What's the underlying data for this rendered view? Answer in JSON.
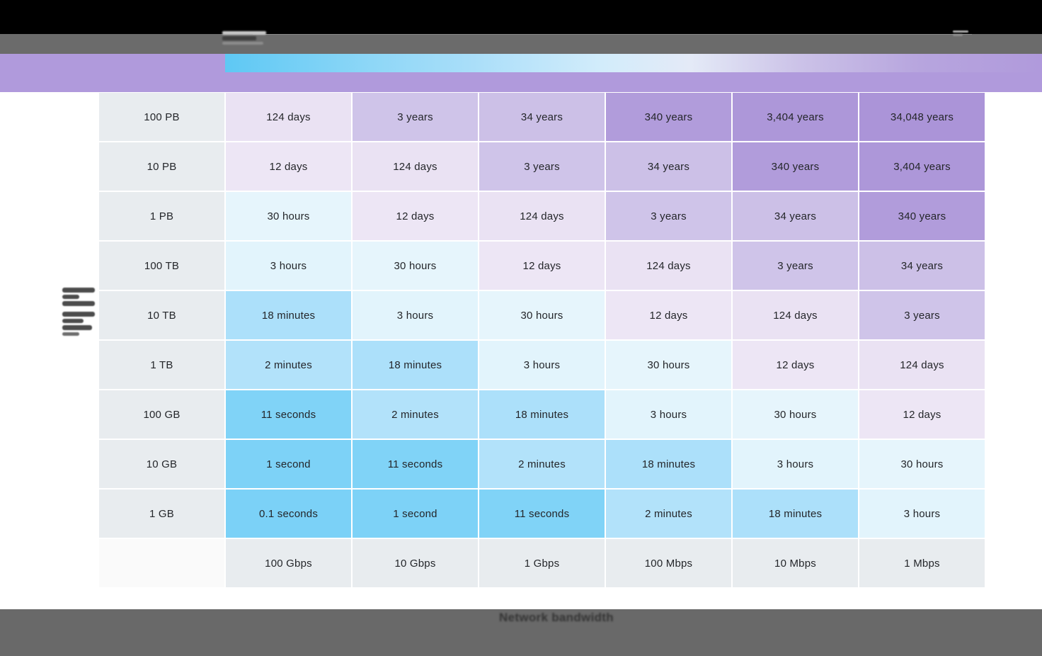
{
  "chart_data": {
    "type": "heatmap",
    "rows": [
      "100 PB",
      "10 PB",
      "1 PB",
      "100 TB",
      "10 TB",
      "1 TB",
      "100 GB",
      "10 GB",
      "1 GB"
    ],
    "columns": [
      "100 Gbps",
      "10 Gbps",
      "1 Gbps",
      "100 Mbps",
      "10 Mbps",
      "1 Mbps"
    ],
    "values": [
      [
        "124 days",
        "3 years",
        "34 years",
        "340 years",
        "3,404 years",
        "34,048 years"
      ],
      [
        "12 days",
        "124 days",
        "3 years",
        "34 years",
        "340 years",
        "3,404 years"
      ],
      [
        "30 hours",
        "12 days",
        "124 days",
        "3 years",
        "34 years",
        "340 years"
      ],
      [
        "3 hours",
        "30 hours",
        "12 days",
        "124 days",
        "3 years",
        "34 years"
      ],
      [
        "18 minutes",
        "3 hours",
        "30 hours",
        "12 days",
        "124 days",
        "3 years"
      ],
      [
        "2 minutes",
        "18 minutes",
        "3 hours",
        "30 hours",
        "12 days",
        "124 days"
      ],
      [
        "11 seconds",
        "2 minutes",
        "18 minutes",
        "3 hours",
        "30 hours",
        "12 days"
      ],
      [
        "1 second",
        "11 seconds",
        "2 minutes",
        "18 minutes",
        "3 hours",
        "30 hours"
      ],
      [
        "0.1 seconds",
        "1 second",
        "11 seconds",
        "2 minutes",
        "18 minutes",
        "3 hours"
      ]
    ],
    "xlabel": "Network bandwidth",
    "legend_position": "top",
    "legend_gradient": [
      "#5ec8f4",
      "#a9def9",
      "#d6edfb",
      "#e4eaf7",
      "#ccc3e8",
      "#b09adc"
    ],
    "color_scale_fast_end": "#7dd2f7",
    "color_scale_slow_end": "#ae97d9"
  },
  "value_colors": {
    "0.1 seconds": "#7bd1f7",
    "1 second": "#7dd2f7",
    "11 seconds": "#80d3f7",
    "2 minutes": "#b2e2fa",
    "18 minutes": "#ace0fa",
    "3 hours": "#e2f4fc",
    "30 hours": "#e6f5fc",
    "12 days": "#ede6f5",
    "124 days": "#eae2f3",
    "3 years": "#cfc4e9",
    "34 years": "#ccc0e7",
    "340 years": "#b19cdb",
    "3,404 years": "#ad97d9",
    "34,048 years": "#ab94d8"
  },
  "header_colors": {
    "row_col_header_bg": "#e8ecef",
    "corner_bg": "#fafafa",
    "top_bar": "#000000",
    "chrome_gray": "#6b6b6b",
    "band_purple": "#b09adc",
    "footer_gray": "#696969"
  }
}
